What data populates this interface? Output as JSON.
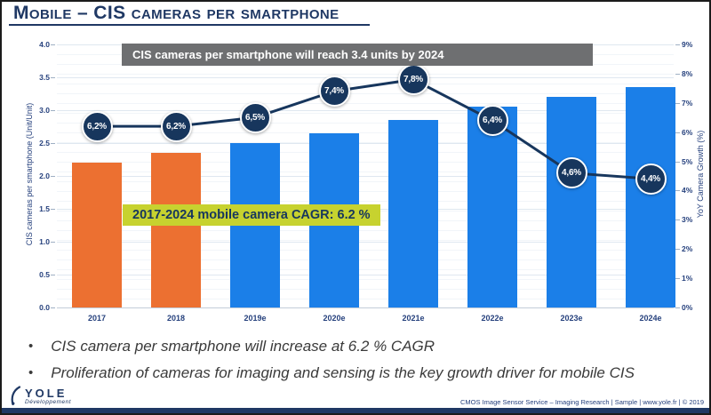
{
  "header": {
    "title": "Mobile – CIS cameras per smartphone"
  },
  "chart_data": {
    "type": "bar",
    "combo": "bar+line",
    "title": "CIS cameras per smartphone will reach 3.4 units by 2024",
    "annotation": "2017-2024 mobile camera CAGR: 6.2 %",
    "categories": [
      "2017",
      "2018",
      "2019e",
      "2020e",
      "2021e",
      "2022e",
      "2023e",
      "2024e"
    ],
    "series": [
      {
        "name": "CIS cameras per smartphone (Unit/Unit)",
        "type": "bar",
        "axis": "left",
        "values": [
          2.2,
          2.35,
          2.5,
          2.65,
          2.85,
          3.05,
          3.2,
          3.35
        ]
      },
      {
        "name": "YoY Camera Growth (%)",
        "type": "line",
        "axis": "right",
        "values": [
          6.2,
          6.2,
          6.5,
          7.4,
          7.8,
          6.4,
          4.6,
          4.4
        ],
        "labels": [
          "6,2%",
          "6,2%",
          "6,5%",
          "7,4%",
          "7,8%",
          "6,4%",
          "4,6%",
          "4,4%"
        ]
      }
    ],
    "left_axis": {
      "label": "CIS cameras per smartphone (Unit/Unit)",
      "min": 0,
      "max": 4,
      "step": 0.5
    },
    "right_axis": {
      "label": "YoY Camera Growth (%)",
      "min": 0,
      "max": 9,
      "step": 1
    },
    "actual_categories": [
      "2017",
      "2018"
    ],
    "bar_colors": {
      "actual": "#EC7031",
      "estimate": "#1B7FE8"
    },
    "line_color": "#17365D",
    "grid": true,
    "legend": "none"
  },
  "bullets": [
    "CIS camera per smartphone will increase at 6.2 % CAGR",
    "Proliferation of cameras for imaging and sensing is the key growth driver for mobile CIS"
  ],
  "footer": {
    "brand": "YOLE",
    "brand_sub": "Développement",
    "credit": "CMOS Image Sensor Service – Imaging Research | Sample | www.yole.fr | © 2019"
  },
  "colors": {
    "navy": "#1F3864",
    "banner_bg": "#6E6F71",
    "cagr_bg": "#C7D22F",
    "bar_actual": "#EC7031",
    "bar_estimate": "#1B7FE8",
    "line": "#17365D"
  }
}
